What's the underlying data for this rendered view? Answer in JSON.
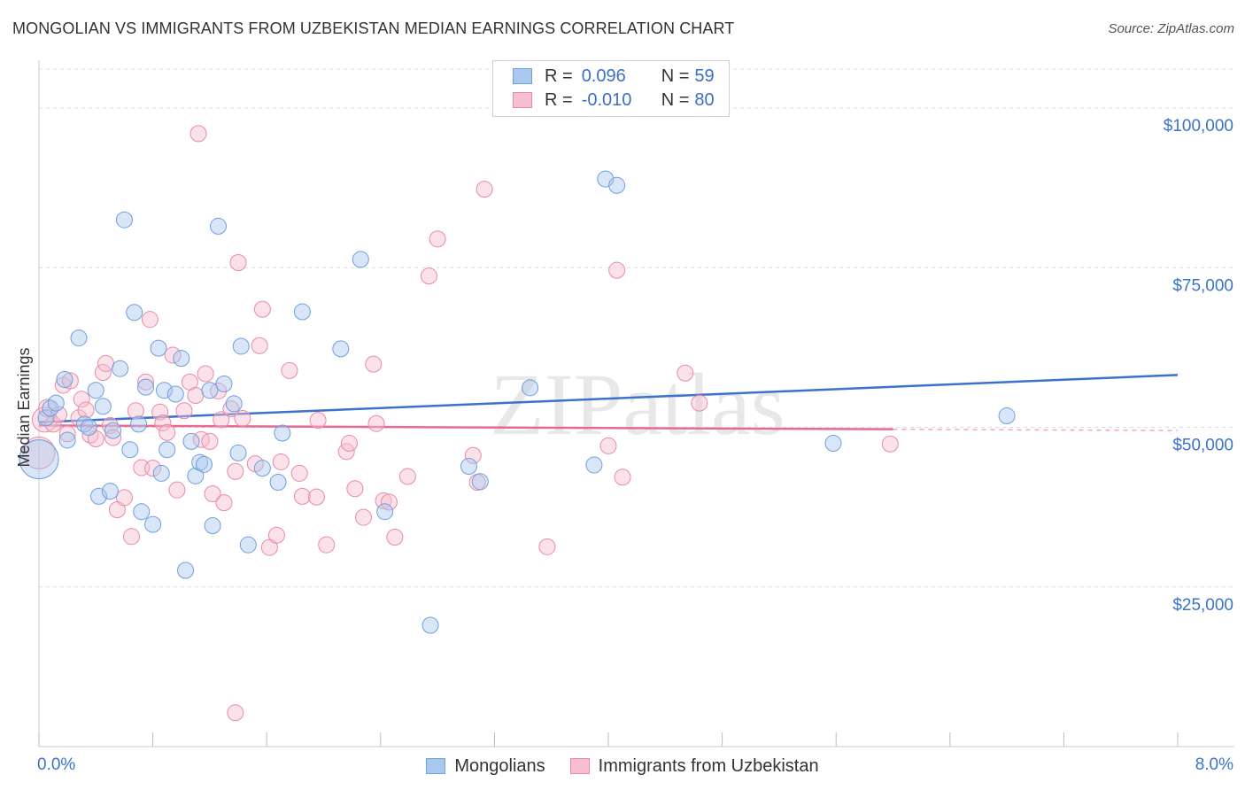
{
  "title": "MONGOLIAN VS IMMIGRANTS FROM UZBEKISTAN MEDIAN EARNINGS CORRELATION CHART",
  "source": "Source: ZipAtlas.com",
  "watermark": "ZIPatlas",
  "legend": {
    "rows": [
      {
        "r_label": "R =",
        "r_value": "0.096",
        "n_label": "N =",
        "n_value": "59",
        "color": "#a9c8f0",
        "edge": "#6f9fdc"
      },
      {
        "r_label": "R =",
        "r_value": "-0.010",
        "n_label": "N =",
        "n_value": "80",
        "color": "#f7bfd0",
        "edge": "#e88aa6"
      }
    ]
  },
  "bottom_legend": [
    {
      "label": "Mongolians",
      "color": "#a9c8f0",
      "edge": "#6f9fdc"
    },
    {
      "label": "Immigrants from Uzbekistan",
      "color": "#f7bfd0",
      "edge": "#e88aa6"
    }
  ],
  "chart_data": {
    "type": "scatter",
    "xlabel": "",
    "ylabel": "Median Earnings",
    "xlim": [
      0,
      8
    ],
    "ylim": [
      0,
      105000
    ],
    "x_tick_labels": [
      {
        "value": 0,
        "label": "0.0%"
      },
      {
        "value": 8,
        "label": "8.0%"
      }
    ],
    "y_ticks": [
      {
        "value": 25000,
        "label": "$25,000"
      },
      {
        "value": 50000,
        "label": "$50,000"
      },
      {
        "value": 75000,
        "label": "$75,000"
      },
      {
        "value": 100000,
        "label": "$100,000"
      }
    ],
    "x_minor_ticks": [
      0,
      0.8,
      1.6,
      2.4,
      3.2,
      4.0,
      4.8,
      5.6,
      6.4,
      7.2,
      8.0
    ],
    "colors": {
      "mongolians": "#3b73cc",
      "uzbekistan": "#e86a92",
      "axis_label": "#3b73cc",
      "grid": "#dddddd"
    },
    "series": [
      {
        "name": "Mongolians",
        "trend": {
          "x": [
            0,
            8
          ],
          "y": [
            50800,
            58200
          ]
        },
        "points": [
          [
            0.0,
            45000,
            22
          ],
          [
            0.05,
            51500,
            9
          ],
          [
            0.08,
            53000,
            9
          ],
          [
            0.12,
            53800,
            9
          ],
          [
            0.18,
            57500,
            9
          ],
          [
            0.2,
            48000,
            9
          ],
          [
            0.28,
            64000,
            9
          ],
          [
            0.32,
            50500,
            9
          ],
          [
            0.35,
            50000,
            9
          ],
          [
            0.4,
            55800,
            9
          ],
          [
            0.42,
            39200,
            9
          ],
          [
            0.45,
            53300,
            9
          ],
          [
            0.5,
            40000,
            9
          ],
          [
            0.52,
            49500,
            9
          ],
          [
            0.57,
            59200,
            9
          ],
          [
            0.6,
            82500,
            9
          ],
          [
            0.64,
            46500,
            9
          ],
          [
            0.67,
            68000,
            9
          ],
          [
            0.7,
            50500,
            9
          ],
          [
            0.72,
            36800,
            9
          ],
          [
            0.75,
            56300,
            9
          ],
          [
            0.8,
            34800,
            9
          ],
          [
            0.84,
            62400,
            9
          ],
          [
            0.86,
            42800,
            9
          ],
          [
            0.88,
            55800,
            9
          ],
          [
            0.9,
            46500,
            9
          ],
          [
            0.96,
            55200,
            9
          ],
          [
            1.0,
            60800,
            9
          ],
          [
            1.03,
            27600,
            9
          ],
          [
            1.07,
            47800,
            9
          ],
          [
            1.1,
            42400,
            9
          ],
          [
            1.13,
            44500,
            9
          ],
          [
            1.16,
            44200,
            9
          ],
          [
            1.2,
            55800,
            9
          ],
          [
            1.22,
            34600,
            9
          ],
          [
            1.26,
            81500,
            9
          ],
          [
            1.3,
            56800,
            9
          ],
          [
            1.37,
            53700,
            9
          ],
          [
            1.4,
            46000,
            9
          ],
          [
            1.42,
            62700,
            9
          ],
          [
            1.47,
            31600,
            9
          ],
          [
            1.57,
            43600,
            9
          ],
          [
            1.68,
            41400,
            9
          ],
          [
            1.71,
            49100,
            9
          ],
          [
            1.85,
            68100,
            9
          ],
          [
            2.12,
            62300,
            9
          ],
          [
            2.26,
            76300,
            9
          ],
          [
            2.43,
            36800,
            9
          ],
          [
            2.75,
            19000,
            9
          ],
          [
            3.02,
            43900,
            9
          ],
          [
            3.1,
            41500,
            9
          ],
          [
            3.45,
            56200,
            9
          ],
          [
            3.9,
            44100,
            9
          ],
          [
            3.98,
            88900,
            9
          ],
          [
            4.06,
            87900,
            9
          ],
          [
            5.58,
            47500,
            9
          ],
          [
            6.8,
            51800,
            9
          ]
        ]
      },
      {
        "name": "Immigrants from Uzbekistan",
        "trend": {
          "x": [
            0,
            6.0
          ],
          "y": [
            50300,
            49700
          ]
        },
        "trend_dash": {
          "x": [
            6.0,
            8
          ],
          "y": [
            49700,
            49500
          ]
        },
        "points": [
          [
            0.0,
            46000,
            18
          ],
          [
            0.04,
            51200,
            14
          ],
          [
            0.06,
            53000,
            10
          ],
          [
            0.1,
            50500,
            9
          ],
          [
            0.14,
            52000,
            9
          ],
          [
            0.17,
            56600,
            9
          ],
          [
            0.2,
            49000,
            9
          ],
          [
            0.22,
            57300,
            9
          ],
          [
            0.28,
            51500,
            9
          ],
          [
            0.3,
            54400,
            9
          ],
          [
            0.33,
            52700,
            9
          ],
          [
            0.36,
            48800,
            9
          ],
          [
            0.4,
            48200,
            9
          ],
          [
            0.45,
            58600,
            9
          ],
          [
            0.47,
            60000,
            9
          ],
          [
            0.5,
            50300,
            9
          ],
          [
            0.52,
            48400,
            9
          ],
          [
            0.55,
            37100,
            9
          ],
          [
            0.6,
            39000,
            9
          ],
          [
            0.65,
            32900,
            9
          ],
          [
            0.68,
            52600,
            9
          ],
          [
            0.72,
            43700,
            9
          ],
          [
            0.75,
            57100,
            9
          ],
          [
            0.78,
            66900,
            9
          ],
          [
            0.8,
            43600,
            9
          ],
          [
            0.85,
            52400,
            9
          ],
          [
            0.87,
            50700,
            9
          ],
          [
            0.9,
            49200,
            9
          ],
          [
            0.94,
            61300,
            9
          ],
          [
            0.97,
            40200,
            9
          ],
          [
            1.02,
            52600,
            9
          ],
          [
            1.06,
            57100,
            9
          ],
          [
            1.1,
            55000,
            9
          ],
          [
            1.12,
            96000,
            9
          ],
          [
            1.14,
            48100,
            9
          ],
          [
            1.17,
            58400,
            9
          ],
          [
            1.2,
            47800,
            9
          ],
          [
            1.22,
            39600,
            9
          ],
          [
            1.26,
            55700,
            9
          ],
          [
            1.28,
            51200,
            9
          ],
          [
            1.3,
            38200,
            9
          ],
          [
            1.35,
            52900,
            9
          ],
          [
            1.38,
            43100,
            9
          ],
          [
            1.4,
            75800,
            9
          ],
          [
            1.43,
            51400,
            9
          ],
          [
            1.52,
            44300,
            9
          ],
          [
            1.55,
            62800,
            9
          ],
          [
            1.57,
            68500,
            9
          ],
          [
            1.62,
            31200,
            9
          ],
          [
            1.67,
            33100,
            9
          ],
          [
            1.7,
            44600,
            9
          ],
          [
            1.76,
            58900,
            9
          ],
          [
            1.83,
            42800,
            9
          ],
          [
            1.85,
            39200,
            9
          ],
          [
            1.95,
            39100,
            9
          ],
          [
            2.02,
            31600,
            9
          ],
          [
            2.16,
            46200,
            9
          ],
          [
            2.18,
            47500,
            9
          ],
          [
            2.22,
            40400,
            9
          ],
          [
            2.28,
            35900,
            9
          ],
          [
            2.35,
            59900,
            9
          ],
          [
            2.37,
            50600,
            9
          ],
          [
            2.42,
            38500,
            9
          ],
          [
            2.46,
            38300,
            9
          ],
          [
            2.5,
            32800,
            9
          ],
          [
            2.59,
            42300,
            9
          ],
          [
            2.74,
            73700,
            9
          ],
          [
            2.8,
            79500,
            9
          ],
          [
            3.05,
            45600,
            9
          ],
          [
            3.08,
            41400,
            9
          ],
          [
            3.13,
            87300,
            9
          ],
          [
            3.57,
            31300,
            9
          ],
          [
            4.0,
            47100,
            9
          ],
          [
            4.06,
            74600,
            9
          ],
          [
            4.1,
            42200,
            9
          ],
          [
            4.54,
            58500,
            9
          ],
          [
            4.64,
            53800,
            9
          ],
          [
            5.98,
            47400,
            9
          ],
          [
            1.38,
            5300,
            9
          ],
          [
            1.96,
            51100,
            9
          ]
        ]
      }
    ]
  }
}
